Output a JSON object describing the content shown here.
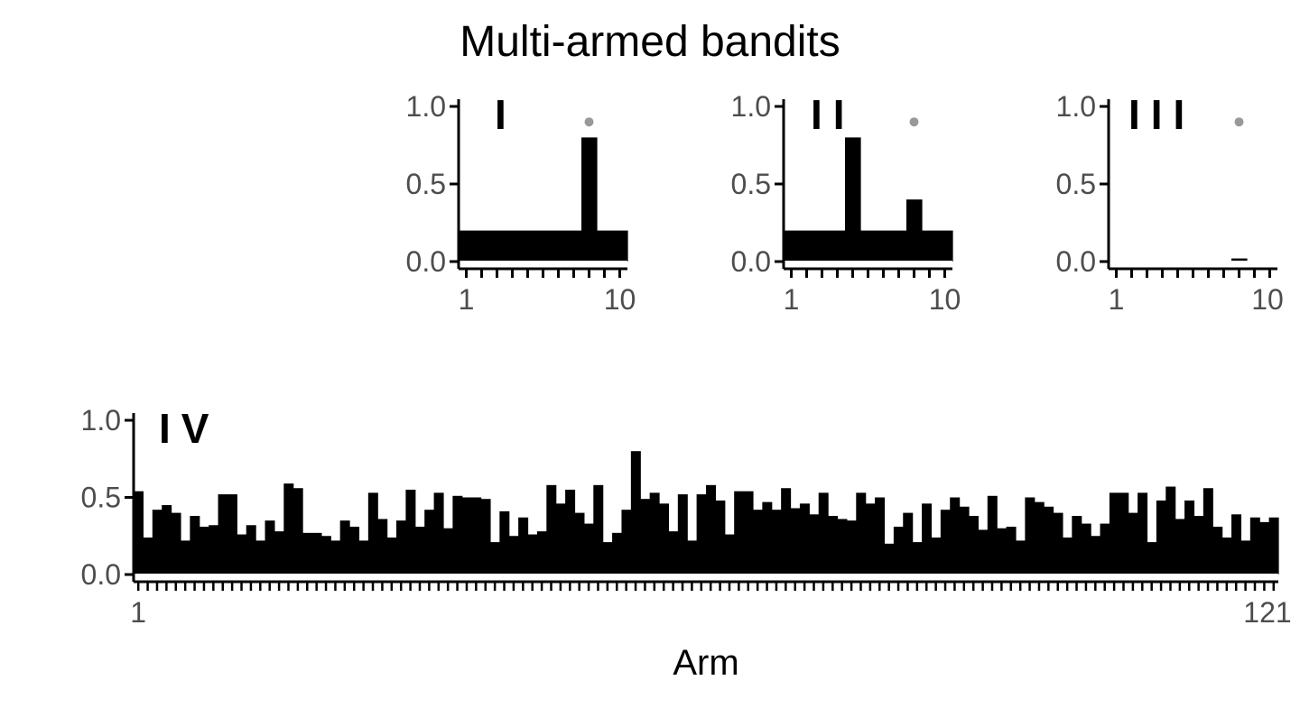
{
  "chart_data": {
    "type": "bar",
    "title": "Multi-armed bandits",
    "xlabel": "Arm",
    "ylabel": "",
    "ylim": [
      0,
      1.0
    ],
    "y_ticks": [
      "0.0",
      "0.5",
      "1.0"
    ],
    "colors": {
      "bars": "#000000",
      "marker": "#999999",
      "axis": "#000000",
      "tick_text": "#4d4d4d"
    },
    "panels": [
      {
        "label": "I",
        "x_tick_labels": [
          "1",
          "10"
        ],
        "values": [
          0.2,
          0.2,
          0.2,
          0.2,
          0.2,
          0.2,
          0.2,
          0.2,
          0.8,
          0.2,
          0.2
        ],
        "marker": {
          "arm": 9,
          "value": 0.9
        }
      },
      {
        "label": "II",
        "x_tick_labels": [
          "1",
          "10"
        ],
        "values": [
          0.2,
          0.2,
          0.2,
          0.2,
          0.8,
          0.2,
          0.2,
          0.2,
          0.4,
          0.2,
          0.2
        ],
        "marker": {
          "arm": 9,
          "value": 0.9
        }
      },
      {
        "label": "III",
        "x_tick_labels": [
          "1",
          "10"
        ],
        "values": [
          0.0,
          0.0,
          0.0,
          0.0,
          0.0,
          0.0,
          0.0,
          0.0,
          0.02,
          0.0,
          0.0
        ],
        "marker": {
          "arm": 9,
          "value": 0.9
        }
      },
      {
        "label": "IV",
        "x_tick_labels": [
          "1",
          "121"
        ],
        "values": [
          0.54,
          0.24,
          0.42,
          0.45,
          0.4,
          0.22,
          0.38,
          0.31,
          0.32,
          0.52,
          0.52,
          0.26,
          0.32,
          0.22,
          0.35,
          0.28,
          0.59,
          0.56,
          0.27,
          0.27,
          0.25,
          0.22,
          0.35,
          0.31,
          0.22,
          0.53,
          0.36,
          0.24,
          0.35,
          0.55,
          0.31,
          0.42,
          0.53,
          0.3,
          0.51,
          0.5,
          0.5,
          0.49,
          0.21,
          0.41,
          0.25,
          0.37,
          0.26,
          0.28,
          0.58,
          0.46,
          0.55,
          0.4,
          0.33,
          0.58,
          0.21,
          0.27,
          0.42,
          0.8,
          0.49,
          0.53,
          0.46,
          0.28,
          0.52,
          0.22,
          0.52,
          0.58,
          0.48,
          0.26,
          0.54,
          0.54,
          0.42,
          0.47,
          0.42,
          0.56,
          0.43,
          0.46,
          0.39,
          0.53,
          0.38,
          0.36,
          0.35,
          0.53,
          0.46,
          0.5,
          0.2,
          0.31,
          0.4,
          0.21,
          0.46,
          0.24,
          0.42,
          0.5,
          0.44,
          0.38,
          0.29,
          0.51,
          0.3,
          0.31,
          0.22,
          0.5,
          0.47,
          0.44,
          0.4,
          0.24,
          0.38,
          0.33,
          0.25,
          0.33,
          0.53,
          0.53,
          0.4,
          0.53,
          0.21,
          0.48,
          0.57,
          0.36,
          0.48,
          0.38,
          0.56,
          0.31,
          0.24,
          0.39,
          0.22,
          0.37,
          0.34,
          0.37
        ]
      }
    ]
  }
}
